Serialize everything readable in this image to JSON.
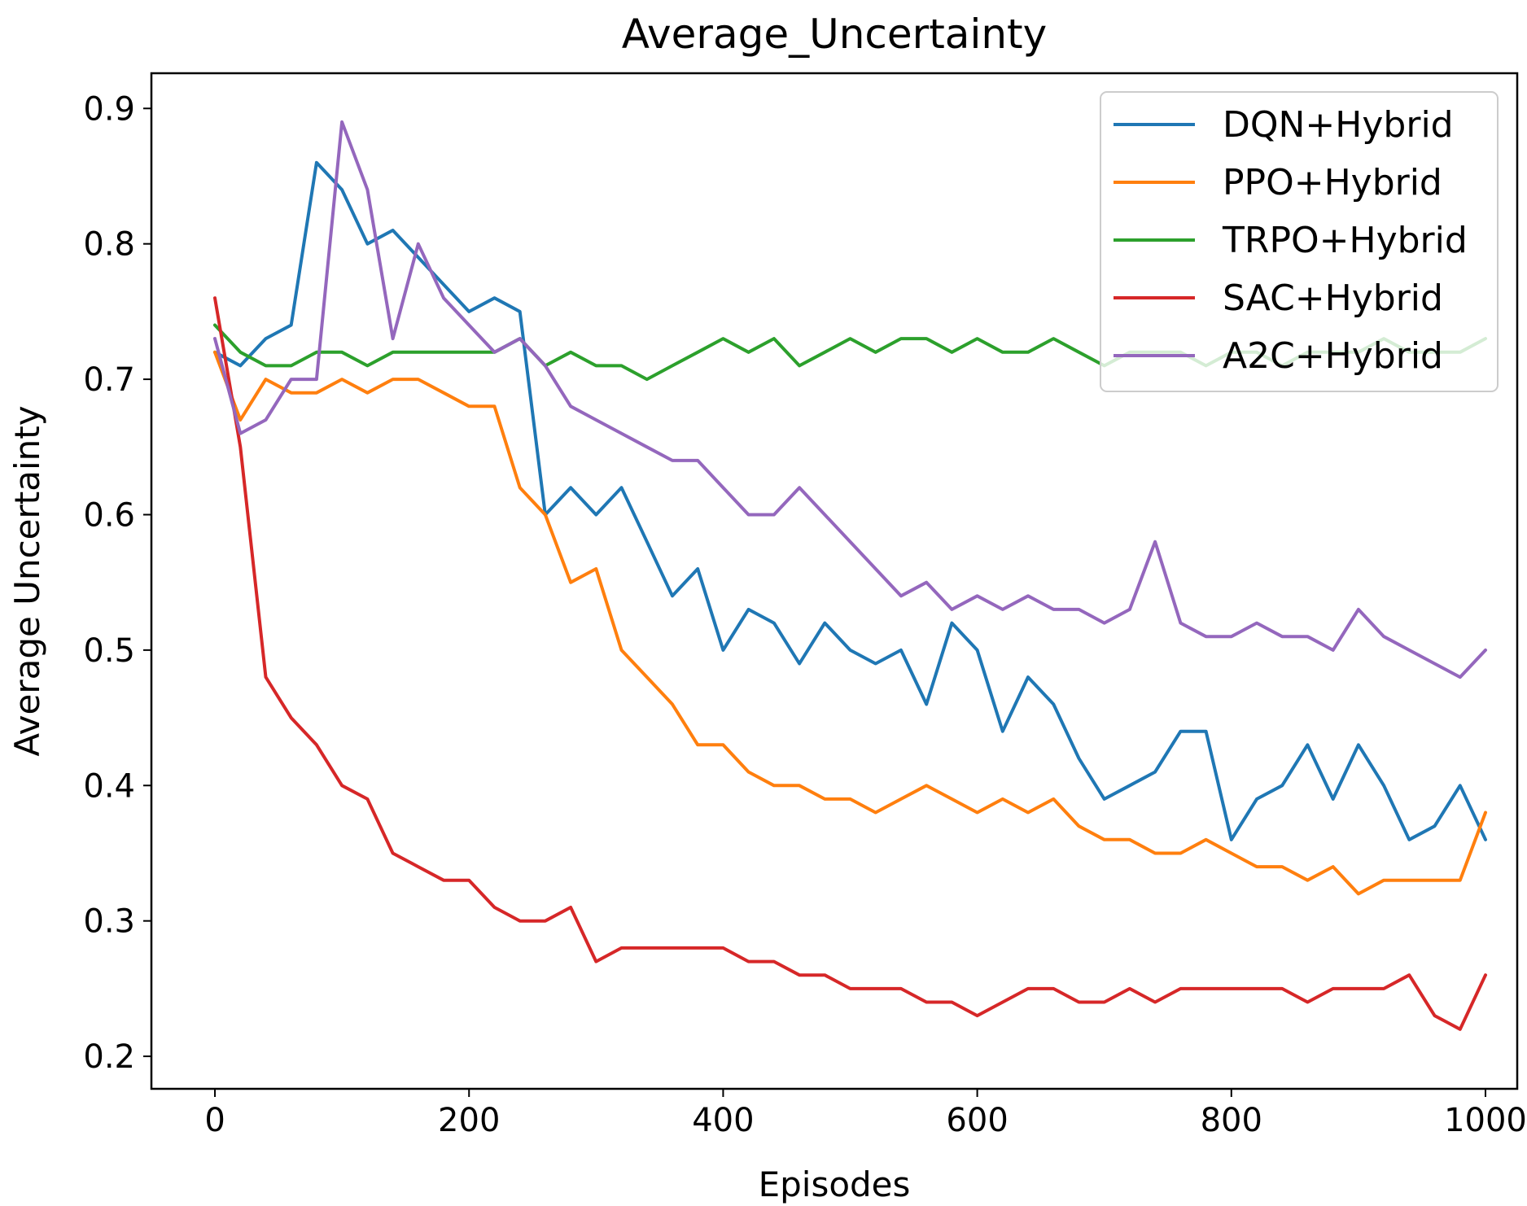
{
  "chart_data": {
    "type": "line",
    "title": "Average_Uncertainty",
    "xlabel": "Episodes",
    "ylabel": "Average Uncertainty",
    "xlim": [
      -50,
      1025
    ],
    "ylim": [
      0.176,
      0.926
    ],
    "xticks": [
      0,
      200,
      400,
      600,
      800,
      1000
    ],
    "xtick_labels": [
      "0",
      "200",
      "400",
      "600",
      "800",
      "1000"
    ],
    "yticks": [
      0.2,
      0.3,
      0.4,
      0.5,
      0.6,
      0.7,
      0.8,
      0.9
    ],
    "ytick_labels": [
      "0.2",
      "0.3",
      "0.4",
      "0.5",
      "0.6",
      "0.7",
      "0.8",
      "0.9"
    ],
    "grid": false,
    "legend_position": "top-right",
    "x": [
      0,
      20,
      40,
      60,
      80,
      100,
      120,
      140,
      160,
      180,
      200,
      220,
      240,
      260,
      280,
      300,
      320,
      340,
      360,
      380,
      400,
      420,
      440,
      460,
      480,
      500,
      520,
      540,
      560,
      580,
      600,
      620,
      640,
      660,
      680,
      700,
      720,
      740,
      760,
      780,
      800,
      820,
      840,
      860,
      880,
      900,
      920,
      940,
      960,
      980,
      1000
    ],
    "series": [
      {
        "name": "DQN+Hybrid",
        "color": "#1f77b4",
        "values": [
          0.72,
          0.71,
          0.73,
          0.74,
          0.86,
          0.84,
          0.8,
          0.81,
          0.79,
          0.77,
          0.75,
          0.76,
          0.75,
          0.6,
          0.62,
          0.6,
          0.62,
          0.58,
          0.54,
          0.56,
          0.5,
          0.53,
          0.52,
          0.49,
          0.52,
          0.5,
          0.49,
          0.5,
          0.46,
          0.52,
          0.5,
          0.44,
          0.48,
          0.46,
          0.42,
          0.39,
          0.4,
          0.41,
          0.44,
          0.44,
          0.36,
          0.39,
          0.4,
          0.43,
          0.39,
          0.43,
          0.4,
          0.36,
          0.37,
          0.4,
          0.36
        ]
      },
      {
        "name": "PPO+Hybrid",
        "color": "#ff7f0e",
        "values": [
          0.72,
          0.67,
          0.7,
          0.69,
          0.69,
          0.7,
          0.69,
          0.7,
          0.7,
          0.69,
          0.68,
          0.68,
          0.62,
          0.6,
          0.55,
          0.56,
          0.5,
          0.48,
          0.46,
          0.43,
          0.43,
          0.41,
          0.4,
          0.4,
          0.39,
          0.39,
          0.38,
          0.39,
          0.4,
          0.39,
          0.38,
          0.39,
          0.38,
          0.39,
          0.37,
          0.36,
          0.36,
          0.35,
          0.35,
          0.36,
          0.35,
          0.34,
          0.34,
          0.33,
          0.34,
          0.32,
          0.33,
          0.33,
          0.33,
          0.33,
          0.38
        ]
      },
      {
        "name": "TRPO+Hybrid",
        "color": "#2ca02c",
        "values": [
          0.74,
          0.72,
          0.71,
          0.71,
          0.72,
          0.72,
          0.71,
          0.72,
          0.72,
          0.72,
          0.72,
          0.72,
          0.73,
          0.71,
          0.72,
          0.71,
          0.71,
          0.7,
          0.71,
          0.72,
          0.73,
          0.72,
          0.73,
          0.71,
          0.72,
          0.73,
          0.72,
          0.73,
          0.73,
          0.72,
          0.73,
          0.72,
          0.72,
          0.73,
          0.72,
          0.71,
          0.72,
          0.72,
          0.72,
          0.71,
          0.72,
          0.72,
          0.71,
          0.72,
          0.72,
          0.72,
          0.73,
          0.72,
          0.72,
          0.72,
          0.73
        ]
      },
      {
        "name": "SAC+Hybrid",
        "color": "#d62728",
        "values": [
          0.76,
          0.65,
          0.48,
          0.45,
          0.43,
          0.4,
          0.39,
          0.35,
          0.34,
          0.33,
          0.33,
          0.31,
          0.3,
          0.3,
          0.31,
          0.27,
          0.28,
          0.28,
          0.28,
          0.28,
          0.28,
          0.27,
          0.27,
          0.26,
          0.26,
          0.25,
          0.25,
          0.25,
          0.24,
          0.24,
          0.23,
          0.24,
          0.25,
          0.25,
          0.24,
          0.24,
          0.25,
          0.24,
          0.25,
          0.25,
          0.25,
          0.25,
          0.25,
          0.24,
          0.25,
          0.25,
          0.25,
          0.26,
          0.23,
          0.22,
          0.26
        ]
      },
      {
        "name": "A2C+Hybrid",
        "color": "#9467bd",
        "values": [
          0.73,
          0.66,
          0.67,
          0.7,
          0.7,
          0.89,
          0.84,
          0.73,
          0.8,
          0.76,
          0.74,
          0.72,
          0.73,
          0.71,
          0.68,
          0.67,
          0.66,
          0.65,
          0.64,
          0.64,
          0.62,
          0.6,
          0.6,
          0.62,
          0.6,
          0.58,
          0.56,
          0.54,
          0.55,
          0.53,
          0.54,
          0.53,
          0.54,
          0.53,
          0.53,
          0.52,
          0.53,
          0.58,
          0.52,
          0.51,
          0.51,
          0.52,
          0.51,
          0.51,
          0.5,
          0.53,
          0.51,
          0.5,
          0.49,
          0.48,
          0.5
        ]
      }
    ]
  }
}
